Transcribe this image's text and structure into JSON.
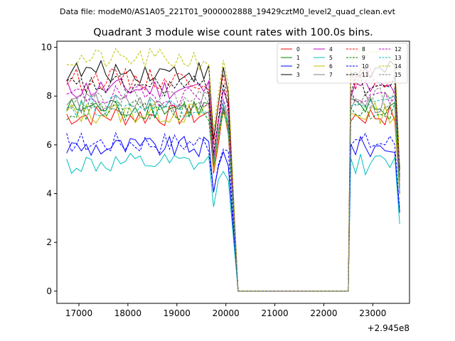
{
  "suptitle": "Data file: modeM0/AS1A05_221T01_9000002888_19429cztM0_level2_quad_clean.evt",
  "chart_data": {
    "type": "line",
    "title": "Quadrant 3 module wise count rates with 100.0s bins.",
    "xlabel": "",
    "ylabel": "",
    "x_offset_label": "+2.945e8",
    "xlim": [
      16550,
      23750
    ],
    "ylim": [
      -0.5,
      10.25
    ],
    "x_ticks": [
      17000,
      18000,
      19000,
      20000,
      21000,
      22000,
      23000
    ],
    "x_tick_labels": [
      "17000",
      "18000",
      "19000",
      "20000",
      "21000",
      "22000",
      "23000"
    ],
    "y_ticks": [
      0,
      2,
      4,
      6,
      8,
      10
    ],
    "y_tick_labels": [
      "0",
      "2",
      "4",
      "6",
      "8",
      "10"
    ],
    "legend_position": "top-right",
    "segments": {
      "start": 16750,
      "step": 100,
      "a_count": 30,
      "dip_count": 3,
      "gap_start": 20050,
      "gap_end": 22500,
      "b_start": 22550,
      "b_count": 10
    },
    "series": [
      {
        "name": "0",
        "color": "#ff0000",
        "dash": "solid",
        "base": 7.2
      },
      {
        "name": "1",
        "color": "#008000",
        "dash": "solid",
        "base": 7.5
      },
      {
        "name": "2",
        "color": "#0000ff",
        "dash": "solid",
        "base": 5.9
      },
      {
        "name": "3",
        "color": "#000000",
        "dash": "solid",
        "base": 9.0
      },
      {
        "name": "4",
        "color": "#bf00bf",
        "dash": "solid",
        "base": 8.3
      },
      {
        "name": "5",
        "color": "#00bfbf",
        "dash": "solid",
        "base": 5.2
      },
      {
        "name": "6",
        "color": "#bfbf00",
        "dash": "solid",
        "base": 7.3
      },
      {
        "name": "7",
        "color": "#808080",
        "dash": "solid",
        "base": 7.7
      },
      {
        "name": "8",
        "color": "#ff0000",
        "dash": "dashed",
        "base": 8.7
      },
      {
        "name": "9",
        "color": "#008000",
        "dash": "dashed",
        "base": 7.4
      },
      {
        "name": "10",
        "color": "#0000ff",
        "dash": "dashed",
        "base": 6.1
      },
      {
        "name": "11",
        "color": "#000000",
        "dash": "dashed",
        "base": 8.4
      },
      {
        "name": "12",
        "color": "#bf00bf",
        "dash": "dashed",
        "base": 8.0
      },
      {
        "name": "13",
        "color": "#00bfbf",
        "dash": "dashed",
        "base": 7.6
      },
      {
        "name": "14",
        "color": "#bfbf00",
        "dash": "dashed",
        "base": 9.5
      },
      {
        "name": "15",
        "color": "#808080",
        "dash": "dashed",
        "base": 7.9
      }
    ]
  }
}
